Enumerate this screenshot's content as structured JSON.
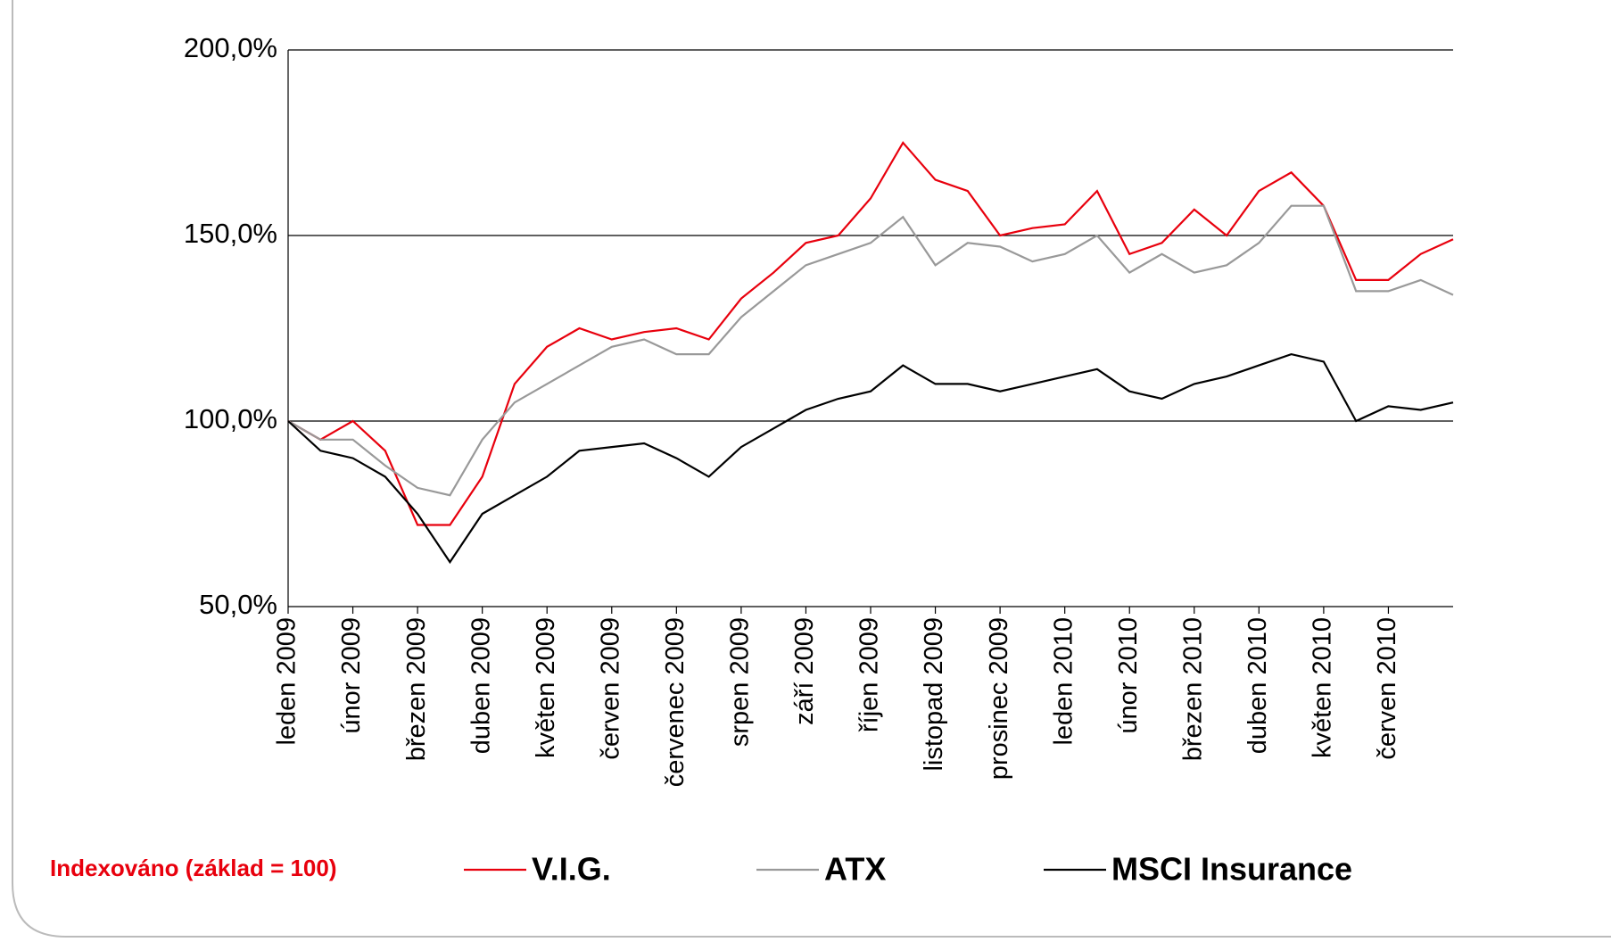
{
  "chart_data": {
    "type": "line",
    "note": "Indexováno (základ = 100)",
    "categories": [
      "leden 2009",
      null,
      "únor 2009",
      null,
      "březen 2009",
      null,
      "duben 2009",
      null,
      "květen 2009",
      null,
      "červen 2009",
      null,
      "červenec 2009",
      null,
      "srpen 2009",
      null,
      "září 2009",
      null,
      "říjen 2009",
      null,
      "listopad 2009",
      null,
      "prosinec 2009",
      null,
      "leden 2010",
      null,
      "únor 2010",
      null,
      "březen 2010",
      null,
      "duben 2010",
      null,
      "květen 2010",
      null,
      "červen 2010",
      null,
      null
    ],
    "series": [
      {
        "name": "V.I.G.",
        "color": "#e8000d",
        "values": [
          100,
          95,
          100,
          92,
          72,
          72,
          85,
          110,
          120,
          125,
          122,
          124,
          125,
          122,
          133,
          140,
          148,
          150,
          160,
          175,
          165,
          162,
          150,
          152,
          153,
          162,
          145,
          148,
          157,
          150,
          162,
          167,
          158,
          138,
          138,
          145,
          149
        ]
      },
      {
        "name": "ATX",
        "color": "#999999",
        "values": [
          100,
          95,
          95,
          88,
          82,
          80,
          95,
          105,
          110,
          115,
          120,
          122,
          118,
          118,
          128,
          135,
          142,
          145,
          148,
          155,
          142,
          148,
          147,
          143,
          145,
          150,
          140,
          145,
          140,
          142,
          148,
          158,
          158,
          135,
          135,
          138,
          134
        ]
      },
      {
        "name": "MSCI Insurance",
        "color": "#000000",
        "values": [
          100,
          92,
          90,
          85,
          75,
          62,
          75,
          80,
          85,
          92,
          93,
          94,
          90,
          85,
          93,
          98,
          103,
          106,
          108,
          115,
          110,
          110,
          108,
          110,
          112,
          114,
          108,
          106,
          110,
          112,
          115,
          118,
          116,
          100,
          104,
          103,
          105
        ]
      }
    ],
    "ylim": [
      50,
      200
    ],
    "yticks": [
      {
        "value": 50,
        "label": "50,0%"
      },
      {
        "value": 100,
        "label": "100,0%"
      },
      {
        "value": 150,
        "label": "150,0%"
      },
      {
        "value": 200,
        "label": "200,0%"
      }
    ],
    "grid": true
  }
}
